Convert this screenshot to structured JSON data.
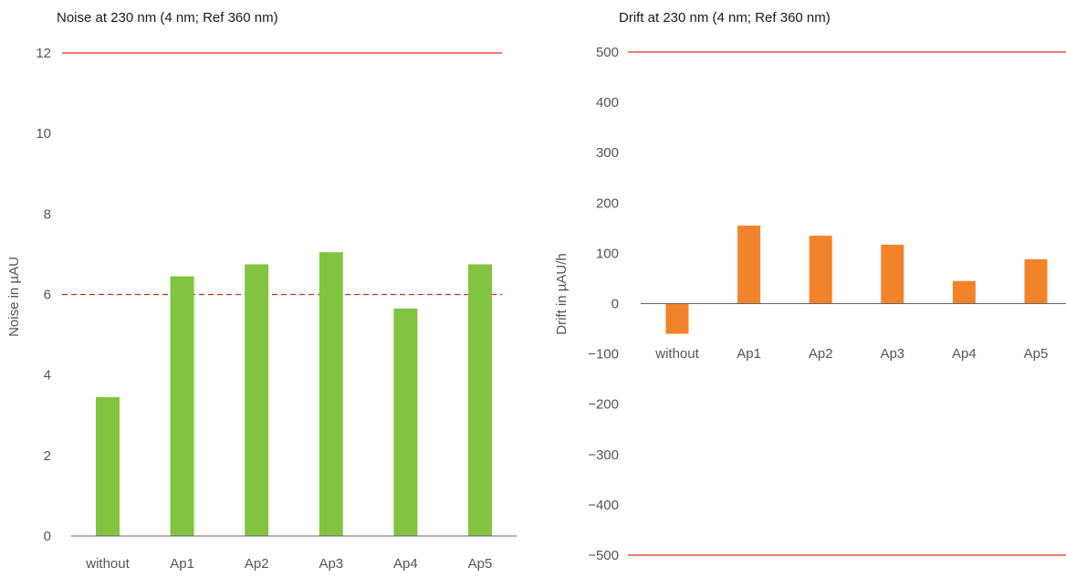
{
  "chart_data": [
    {
      "type": "bar",
      "title": "Noise at 230 nm (4 nm; Ref 360 nm)",
      "xlabel": "",
      "ylabel": "Noise in µAU",
      "categories": [
        "without",
        "Ap1",
        "Ap2",
        "Ap3",
        "Ap4",
        "Ap5"
      ],
      "values": [
        3.45,
        6.45,
        6.75,
        7.05,
        5.65,
        6.75
      ],
      "ylim": [
        0,
        12
      ],
      "yticks": [
        0,
        2,
        4,
        6,
        8,
        10,
        12
      ],
      "bar_color": "#82c341",
      "reference_lines": [
        {
          "value": 12,
          "style": "solid",
          "color": "#d62d20"
        },
        {
          "value": 6,
          "style": "dashed",
          "color": "#d62d20"
        }
      ],
      "grid": false
    },
    {
      "type": "bar",
      "title": "Drift at 230 nm (4 nm; Ref 360 nm)",
      "xlabel": "",
      "ylabel": "Drift in µAU/h",
      "categories": [
        "without",
        "Ap1",
        "Ap2",
        "Ap3",
        "Ap4",
        "Ap5"
      ],
      "values": [
        -60,
        155,
        135,
        117,
        45,
        88
      ],
      "ylim": [
        -500,
        500
      ],
      "yticks": [
        -500,
        -400,
        -300,
        -200,
        -100,
        0,
        100,
        200,
        300,
        400,
        500
      ],
      "ytick_labels": [
        "−500",
        "−400",
        "−300",
        "−200",
        "−100",
        "0",
        "100",
        "200",
        "300",
        "400",
        "500"
      ],
      "bar_color": "#f3832a",
      "reference_lines": [
        {
          "value": 500,
          "style": "solid",
          "color": "#d62d20"
        },
        {
          "value": -500,
          "style": "solid",
          "color": "#d62d20"
        }
      ],
      "grid": false
    }
  ]
}
